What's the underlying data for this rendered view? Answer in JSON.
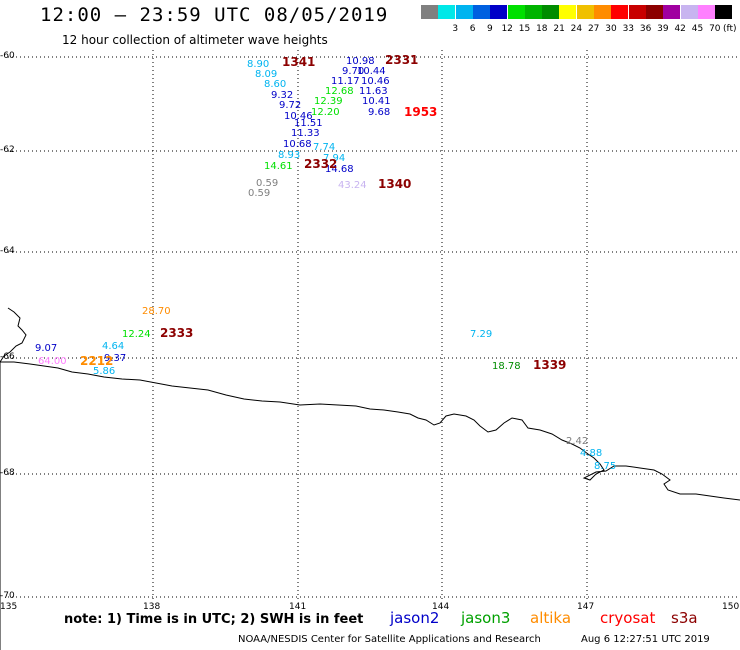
{
  "title": "12:00 – 23:59 UTC 08/05/2019",
  "subtitle": "12 hour collection of altimeter wave heights",
  "legend": {
    "unit": "(ft)",
    "scale": [
      {
        "label": "",
        "color": "#808080"
      },
      {
        "label": "3",
        "color": "#00e8e8"
      },
      {
        "label": "6",
        "color": "#00b4f0"
      },
      {
        "label": "9",
        "color": "#0060e0"
      },
      {
        "label": "12",
        "color": "#0000c8"
      },
      {
        "label": "15",
        "color": "#00e000"
      },
      {
        "label": "18",
        "color": "#00b400"
      },
      {
        "label": "21",
        "color": "#008c00"
      },
      {
        "label": "24",
        "color": "#ffff00"
      },
      {
        "label": "27",
        "color": "#f0c000"
      },
      {
        "label": "30",
        "color": "#ff8c00"
      },
      {
        "label": "33",
        "color": "#ff0000"
      },
      {
        "label": "36",
        "color": "#c80000"
      },
      {
        "label": "39",
        "color": "#8c0000"
      },
      {
        "label": "42",
        "color": "#a000a0"
      },
      {
        "label": "45",
        "color": "#c8b4f0"
      },
      {
        "label": "70",
        "color": "#ff80ff"
      },
      {
        "label": "",
        "color": "#000000"
      }
    ]
  },
  "map": {
    "lat_labels": [
      "-60",
      "-62",
      "-64",
      "-66",
      "-68",
      "-70"
    ],
    "lon_labels": [
      "135",
      "138",
      "141",
      "144",
      "147",
      "150"
    ],
    "wave_heights": [
      {
        "text": "8.90",
        "color": "#00b4f0"
      },
      {
        "text": "8.09",
        "color": "#00b4f0"
      },
      {
        "text": "8.60",
        "color": "#00b4f0"
      },
      {
        "text": "9.32",
        "color": "#0000c8"
      },
      {
        "text": "9.72",
        "color": "#0000c8"
      },
      {
        "text": "10.46",
        "color": "#0000c8"
      },
      {
        "text": "11.51",
        "color": "#0000c8"
      },
      {
        "text": "11.33",
        "color": "#0000c8"
      },
      {
        "text": "10.68",
        "color": "#0000c8"
      },
      {
        "text": "8.93",
        "color": "#00b4f0"
      },
      {
        "text": "14.61",
        "color": "#00e000"
      },
      {
        "text": "0.59",
        "color": "#808080"
      },
      {
        "text": "0.59",
        "color": "#808080"
      },
      {
        "text": "10.98",
        "color": "#0000c8"
      },
      {
        "text": "9.70",
        "color": "#0000c8"
      },
      {
        "text": "10.44",
        "color": "#0000c8"
      },
      {
        "text": "11.17",
        "color": "#0000c8"
      },
      {
        "text": "10.46",
        "color": "#0000c8"
      },
      {
        "text": "12.68",
        "color": "#00e000"
      },
      {
        "text": "11.63",
        "color": "#0000c8"
      },
      {
        "text": "12.39",
        "color": "#00e000"
      },
      {
        "text": "10.41",
        "color": "#0000c8"
      },
      {
        "text": "12.20",
        "color": "#00e000"
      },
      {
        "text": "9.68",
        "color": "#0000c8"
      },
      {
        "text": "7.74",
        "color": "#00b4f0"
      },
      {
        "text": "7.94",
        "color": "#00b4f0"
      },
      {
        "text": "14.68",
        "color": "#0000c8"
      },
      {
        "text": "43.24",
        "color": "#c8b4f0"
      },
      {
        "text": "28.70",
        "color": "#ff8c00"
      },
      {
        "text": "12.24",
        "color": "#00e000"
      },
      {
        "text": "9.07",
        "color": "#0000c8"
      },
      {
        "text": "4.64",
        "color": "#00b4f0"
      },
      {
        "text": "64.00",
        "color": "#ff80ff"
      },
      {
        "text": "9.37",
        "color": "#0000c8"
      },
      {
        "text": "5.86",
        "color": "#00b4f0"
      },
      {
        "text": "7.29",
        "color": "#00b4f0"
      },
      {
        "text": "18.78",
        "color": "#008c00"
      },
      {
        "text": "2.42",
        "color": "#808080"
      },
      {
        "text": "4.88",
        "color": "#00b4f0"
      },
      {
        "text": "8.75",
        "color": "#00b4f0"
      }
    ],
    "pass_times": [
      {
        "text": "1341",
        "color": "#8c0000"
      },
      {
        "text": "2331",
        "color": "#8c0000"
      },
      {
        "text": "1953",
        "color": "#ff0000"
      },
      {
        "text": "2332",
        "color": "#8c0000"
      },
      {
        "text": "1340",
        "color": "#8c0000"
      },
      {
        "text": "2333",
        "color": "#8c0000"
      },
      {
        "text": "2212",
        "color": "#ff8c00"
      },
      {
        "text": "1339",
        "color": "#8c0000"
      }
    ]
  },
  "note": "note: 1) Time is in UTC; 2) SWH is in feet",
  "satellites": [
    {
      "name": "jason2",
      "color": "#0000c8"
    },
    {
      "name": "jason3",
      "color": "#00a000"
    },
    {
      "name": "altika",
      "color": "#ff8c00"
    },
    {
      "name": "cryosat",
      "color": "#ff0000"
    },
    {
      "name": "s3a",
      "color": "#8c0000"
    }
  ],
  "footer": "NOAA/NESDIS Center for Satellite Applications and Research",
  "footer_time": "Aug  6 12:27:51 UTC 2019"
}
